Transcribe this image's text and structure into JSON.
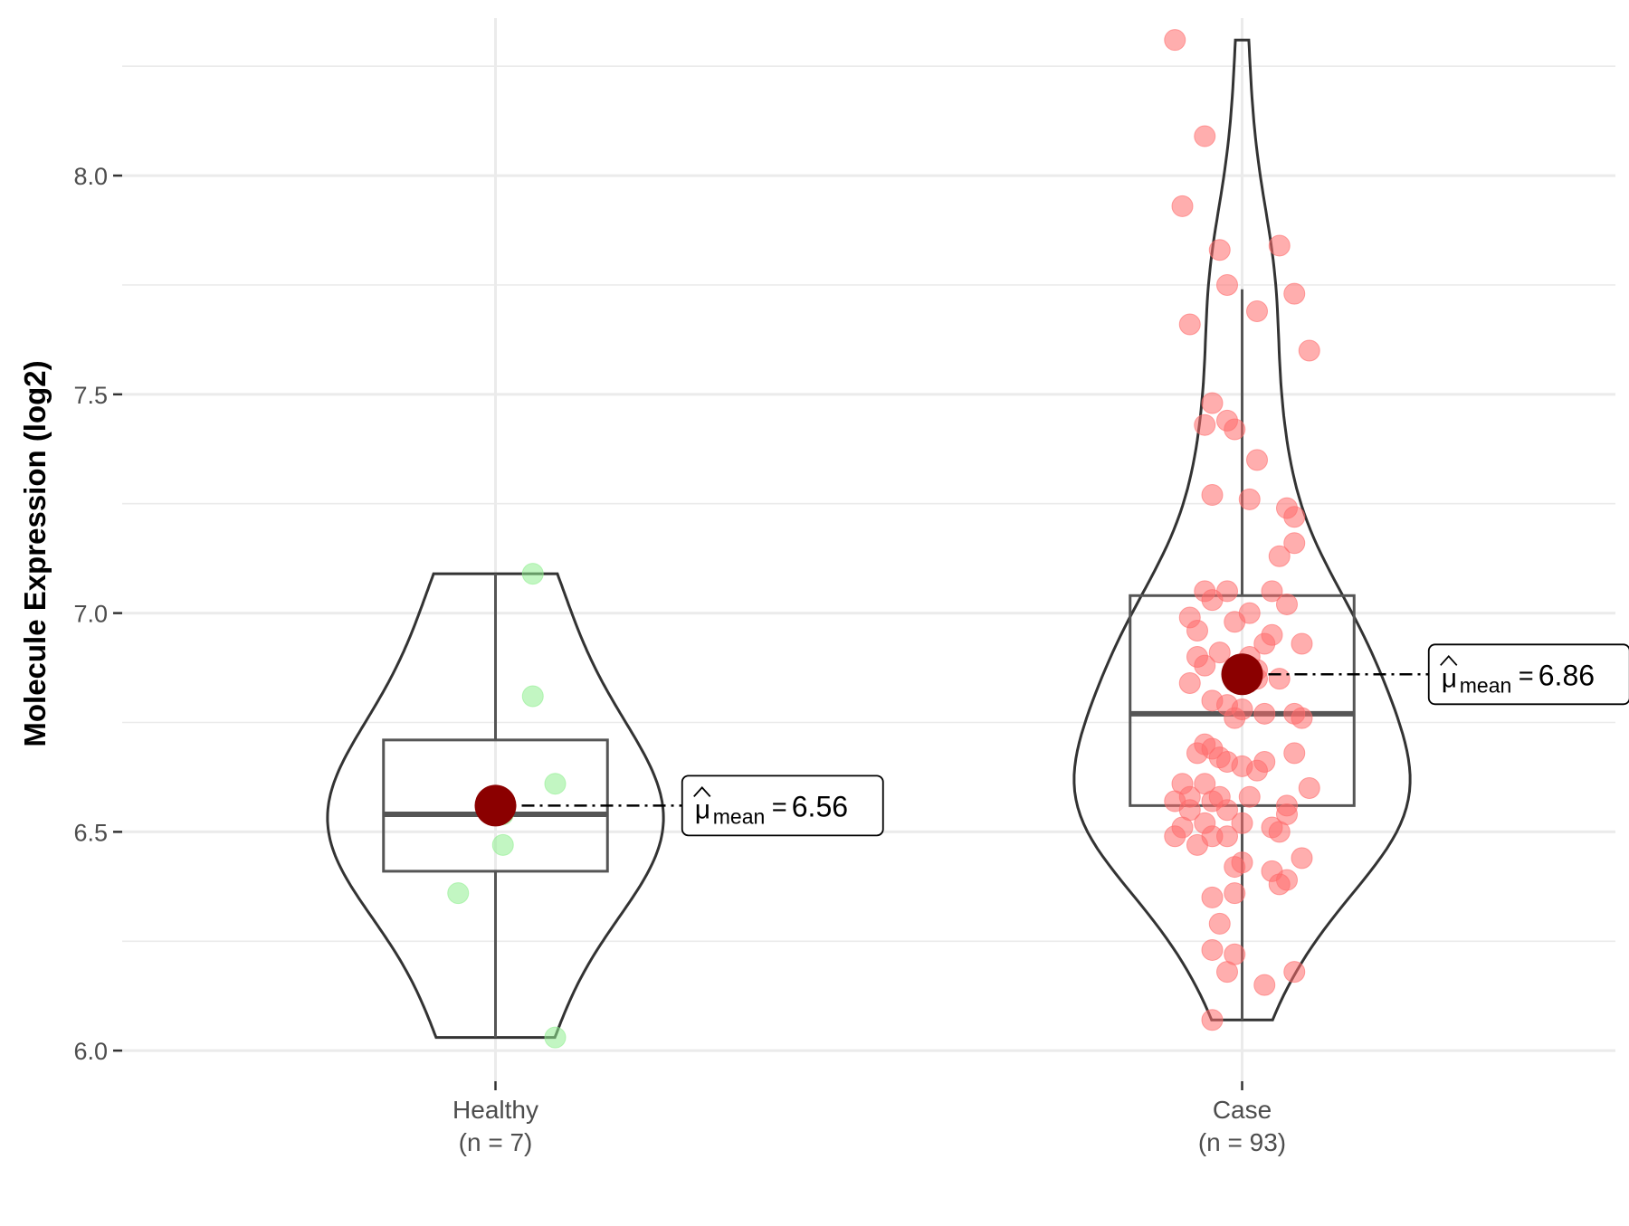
{
  "chart_data": {
    "type": "violin",
    "ylabel": "Molecule Expression (log2)",
    "xlabel": "",
    "ylim": [
      5.93,
      8.36
    ],
    "yticks": [
      "6.0",
      "6.5",
      "7.0",
      "7.5",
      "8.0"
    ],
    "grid": true,
    "groups": [
      {
        "name": "Healthy",
        "n_label": "(n = 7)",
        "color": "#90EE90",
        "violin_range": [
          6.03,
          7.09
        ],
        "box": {
          "q1": 6.41,
          "median": 6.54,
          "q3": 6.71,
          "whisker_low": 6.03,
          "whisker_high": 7.09
        },
        "mean": 6.56,
        "mean_label": "6.56",
        "points": [
          {
            "x": 0.05,
            "y": 7.09
          },
          {
            "x": 0.05,
            "y": 6.81
          },
          {
            "x": 0.08,
            "y": 6.61
          },
          {
            "x": 0.01,
            "y": 6.54
          },
          {
            "x": 0.01,
            "y": 6.47
          },
          {
            "x": -0.05,
            "y": 6.36
          },
          {
            "x": 0.08,
            "y": 6.03
          }
        ]
      },
      {
        "name": "Case",
        "n_label": "(n = 93)",
        "color": "#FF6B6B",
        "violin_range": [
          6.07,
          8.31
        ],
        "box": {
          "q1": 6.56,
          "median": 6.77,
          "q3": 7.04,
          "whisker_low": 6.07,
          "whisker_high": 7.74
        },
        "mean": 6.86,
        "mean_label": "6.86",
        "points": [
          {
            "x": -0.09,
            "y": 8.31
          },
          {
            "x": -0.05,
            "y": 8.09
          },
          {
            "x": -0.08,
            "y": 7.93
          },
          {
            "x": 0.05,
            "y": 7.84
          },
          {
            "x": -0.03,
            "y": 7.83
          },
          {
            "x": -0.02,
            "y": 7.75
          },
          {
            "x": 0.07,
            "y": 7.73
          },
          {
            "x": 0.02,
            "y": 7.69
          },
          {
            "x": -0.07,
            "y": 7.66
          },
          {
            "x": 0.09,
            "y": 7.6
          },
          {
            "x": -0.04,
            "y": 7.48
          },
          {
            "x": -0.05,
            "y": 7.43
          },
          {
            "x": -0.02,
            "y": 7.44
          },
          {
            "x": -0.01,
            "y": 7.42
          },
          {
            "x": 0.02,
            "y": 7.35
          },
          {
            "x": -0.04,
            "y": 7.27
          },
          {
            "x": 0.01,
            "y": 7.26
          },
          {
            "x": 0.06,
            "y": 7.24
          },
          {
            "x": 0.07,
            "y": 7.22
          },
          {
            "x": 0.07,
            "y": 7.16
          },
          {
            "x": 0.05,
            "y": 7.13
          },
          {
            "x": -0.05,
            "y": 7.05
          },
          {
            "x": -0.02,
            "y": 7.05
          },
          {
            "x": 0.04,
            "y": 7.05
          },
          {
            "x": -0.04,
            "y": 7.03
          },
          {
            "x": 0.06,
            "y": 7.02
          },
          {
            "x": -0.07,
            "y": 6.99
          },
          {
            "x": -0.01,
            "y": 6.98
          },
          {
            "x": 0.01,
            "y": 7.0
          },
          {
            "x": -0.06,
            "y": 6.96
          },
          {
            "x": 0.03,
            "y": 6.93
          },
          {
            "x": 0.08,
            "y": 6.93
          },
          {
            "x": -0.06,
            "y": 6.9
          },
          {
            "x": -0.03,
            "y": 6.91
          },
          {
            "x": -0.05,
            "y": 6.88
          },
          {
            "x": 0.01,
            "y": 6.9
          },
          {
            "x": 0.02,
            "y": 6.87
          },
          {
            "x": -0.07,
            "y": 6.84
          },
          {
            "x": 0.02,
            "y": 6.85
          },
          {
            "x": 0.05,
            "y": 6.85
          },
          {
            "x": -0.04,
            "y": 6.8
          },
          {
            "x": -0.02,
            "y": 6.79
          },
          {
            "x": 0.0,
            "y": 6.78
          },
          {
            "x": 0.03,
            "y": 6.77
          },
          {
            "x": 0.07,
            "y": 6.77
          },
          {
            "x": 0.08,
            "y": 6.76
          },
          {
            "x": -0.01,
            "y": 6.76
          },
          {
            "x": -0.06,
            "y": 6.68
          },
          {
            "x": -0.04,
            "y": 6.69
          },
          {
            "x": -0.03,
            "y": 6.67
          },
          {
            "x": -0.02,
            "y": 6.66
          },
          {
            "x": 0.0,
            "y": 6.65
          },
          {
            "x": 0.03,
            "y": 6.66
          },
          {
            "x": 0.07,
            "y": 6.68
          },
          {
            "x": -0.08,
            "y": 6.61
          },
          {
            "x": -0.05,
            "y": 6.61
          },
          {
            "x": 0.09,
            "y": 6.6
          },
          {
            "x": -0.07,
            "y": 6.58
          },
          {
            "x": -0.04,
            "y": 6.57
          },
          {
            "x": -0.03,
            "y": 6.58
          },
          {
            "x": -0.02,
            "y": 6.55
          },
          {
            "x": 0.01,
            "y": 6.58
          },
          {
            "x": 0.06,
            "y": 6.56
          },
          {
            "x": 0.06,
            "y": 6.54
          },
          {
            "x": -0.07,
            "y": 6.55
          },
          {
            "x": -0.09,
            "y": 6.57
          },
          {
            "x": -0.05,
            "y": 6.52
          },
          {
            "x": -0.08,
            "y": 6.51
          },
          {
            "x": -0.02,
            "y": 6.49
          },
          {
            "x": 0.0,
            "y": 6.52
          },
          {
            "x": 0.04,
            "y": 6.51
          },
          {
            "x": 0.05,
            "y": 6.5
          },
          {
            "x": -0.09,
            "y": 6.49
          },
          {
            "x": -0.04,
            "y": 6.49
          },
          {
            "x": -0.06,
            "y": 6.47
          },
          {
            "x": 0.08,
            "y": 6.44
          },
          {
            "x": 0.0,
            "y": 6.43
          },
          {
            "x": -0.01,
            "y": 6.42
          },
          {
            "x": 0.04,
            "y": 6.41
          },
          {
            "x": 0.06,
            "y": 6.39
          },
          {
            "x": 0.05,
            "y": 6.38
          },
          {
            "x": -0.01,
            "y": 6.36
          },
          {
            "x": -0.04,
            "y": 6.35
          },
          {
            "x": -0.04,
            "y": 6.23
          },
          {
            "x": -0.01,
            "y": 6.22
          },
          {
            "x": -0.02,
            "y": 6.18
          },
          {
            "x": 0.07,
            "y": 6.18
          },
          {
            "x": 0.03,
            "y": 6.15
          },
          {
            "x": -0.04,
            "y": 6.07
          },
          {
            "x": -0.03,
            "y": 6.29
          },
          {
            "x": 0.02,
            "y": 6.64
          },
          {
            "x": -0.05,
            "y": 6.7
          },
          {
            "x": 0.04,
            "y": 6.95
          }
        ]
      }
    ]
  }
}
